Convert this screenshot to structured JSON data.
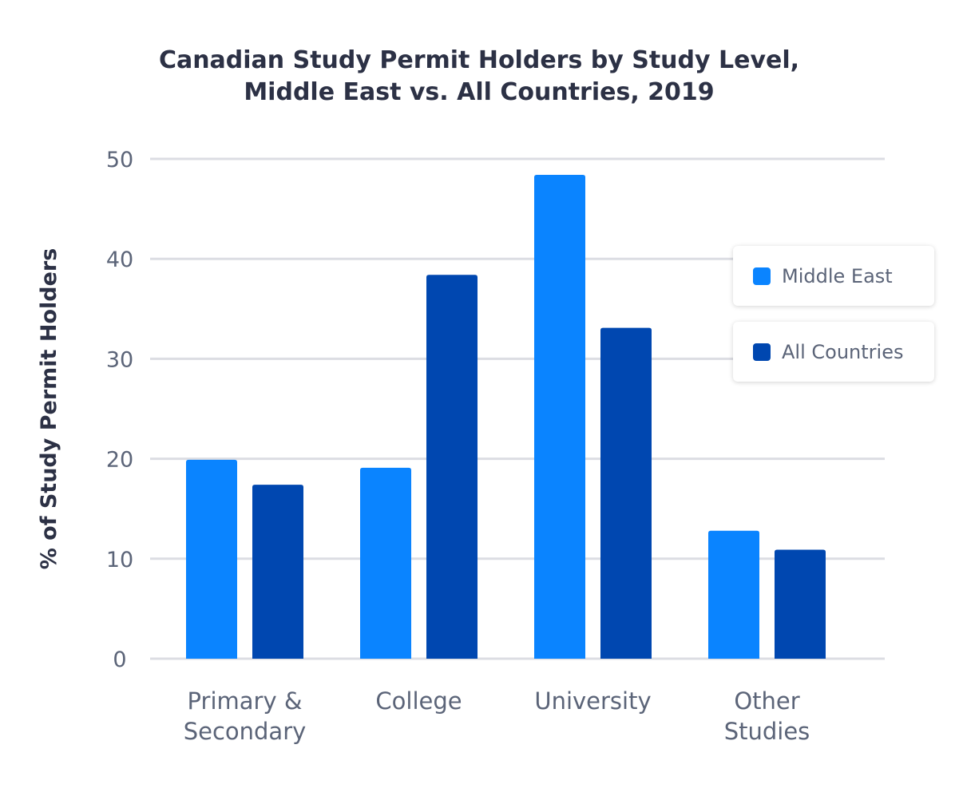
{
  "chart_data": {
    "type": "bar",
    "title_lines": [
      "Canadian Study Permit Holders by Study Level,",
      "Middle East vs. All Countries, 2019"
    ],
    "ylabel": "% of Study Permit Holders",
    "xlabel": "",
    "ylim": [
      0,
      50
    ],
    "yticks": [
      0,
      10,
      20,
      30,
      40,
      50
    ],
    "grid": true,
    "legend_position": "right",
    "categories": [
      [
        "Primary &",
        "Secondary"
      ],
      [
        "College"
      ],
      [
        "University"
      ],
      [
        "Other",
        "Studies"
      ]
    ],
    "series": [
      {
        "name": "Middle East",
        "color": "#0a84ff",
        "values": [
          19.9,
          19.1,
          48.4,
          12.8
        ]
      },
      {
        "name": "All Countries",
        "color": "#0047b0",
        "values": [
          17.4,
          38.4,
          33.1,
          10.9
        ]
      }
    ]
  }
}
